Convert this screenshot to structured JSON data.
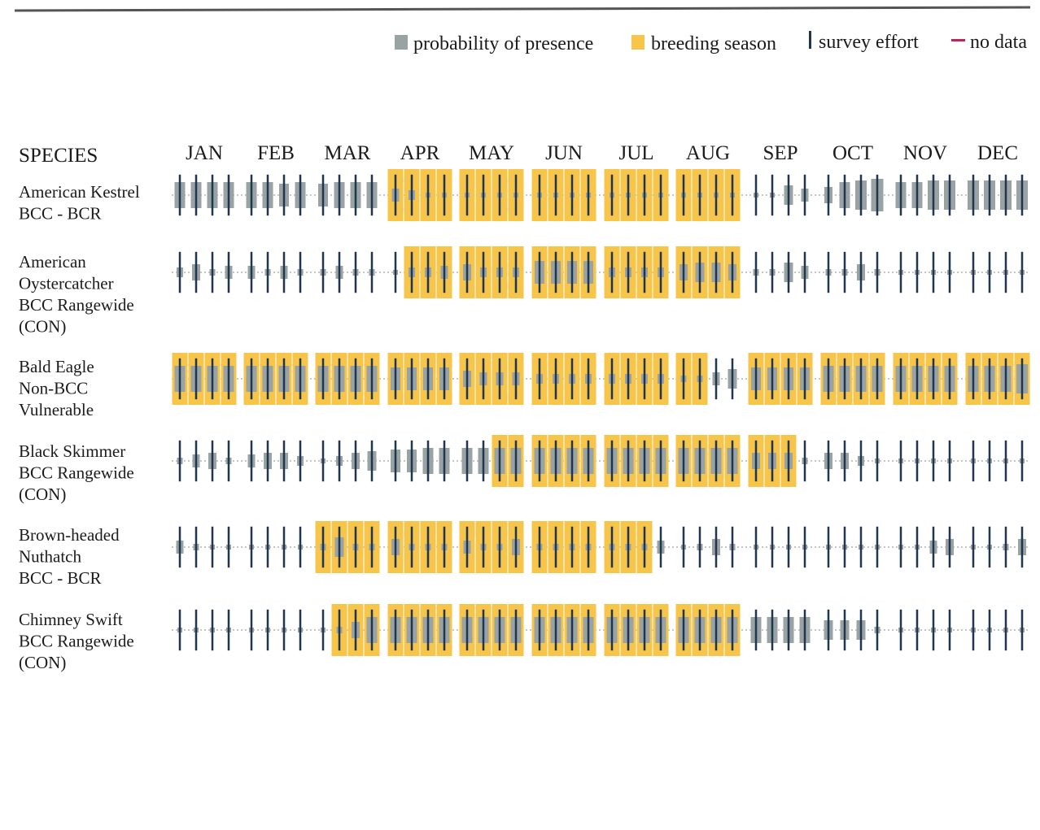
{
  "legend": {
    "presence_label": "probability of presence",
    "breeding_label": "breeding season",
    "effort_label": "survey effort",
    "nodata_label": "no data"
  },
  "colors": {
    "presence": "#9aa3a3",
    "breeding": "#f6c54a",
    "effort": "#1f3550",
    "nodata": "#c0245c",
    "dotted": "#a5a5a5",
    "rule": "#555555"
  },
  "chart_data": {
    "type": "heatmap",
    "header": "SPECIES",
    "months": [
      "JAN",
      "FEB",
      "MAR",
      "APR",
      "MAY",
      "JUN",
      "JUL",
      "AUG",
      "SEP",
      "OCT",
      "NOV",
      "DEC"
    ],
    "weeks_per_month": 4,
    "species": [
      {
        "lines": [
          "American Kestrel",
          "BCC - BCR"
        ],
        "breeding_weeks": [
          12,
          13,
          14,
          15,
          16,
          17,
          18,
          19,
          20,
          21,
          22,
          23,
          24,
          25,
          26,
          27,
          28,
          29,
          30,
          31
        ],
        "presence": [
          0.8,
          0.8,
          0.8,
          0.8,
          0.8,
          0.8,
          0.7,
          0.8,
          0.7,
          0.8,
          0.8,
          0.8,
          0.4,
          0.3,
          0.1,
          0.1,
          0.1,
          0.1,
          0.1,
          0.1,
          0.1,
          0.1,
          0.1,
          0.1,
          0.1,
          0.1,
          0.1,
          0.1,
          0.1,
          0.1,
          0.1,
          0.1,
          0.1,
          0.1,
          0.6,
          0.4,
          0.5,
          0.8,
          0.9,
          1.0,
          0.8,
          0.8,
          0.9,
          0.9,
          0.9,
          0.9,
          0.9,
          0.9
        ],
        "effort": [
          0.9,
          0.9,
          0.9,
          0.9,
          0.9,
          0.9,
          0.9,
          0.9,
          0.9,
          0.9,
          0.9,
          0.9,
          0.9,
          0.9,
          0.9,
          0.9,
          0.9,
          0.9,
          0.9,
          0.9,
          0.9,
          0.9,
          0.9,
          0.9,
          0.9,
          0.9,
          0.9,
          0.9,
          0.9,
          0.9,
          0.9,
          0.9,
          0.9,
          0.9,
          0.9,
          0.9,
          0.9,
          0.9,
          0.9,
          0.9,
          0.9,
          0.9,
          0.9,
          0.9,
          0.9,
          0.9,
          0.9,
          0.9
        ]
      },
      {
        "lines": [
          "American",
          "Oystercatcher",
          "BCC Rangewide",
          "(CON)"
        ],
        "breeding_weeks": [
          13,
          14,
          15,
          16,
          17,
          18,
          19,
          20,
          21,
          22,
          23,
          24,
          25,
          26,
          27,
          28,
          29,
          30,
          31
        ],
        "presence": [
          0.3,
          0.5,
          0.2,
          0.4,
          0.4,
          0.2,
          0.4,
          0.2,
          0.2,
          0.4,
          0.2,
          0.2,
          0.1,
          0.3,
          0.3,
          0.4,
          0.5,
          0.3,
          0.3,
          0.3,
          0.7,
          0.7,
          0.7,
          0.7,
          0.3,
          0.3,
          0.3,
          0.3,
          0.5,
          0.6,
          0.6,
          0.5,
          0.2,
          0.2,
          0.6,
          0.4,
          0.2,
          0.2,
          0.5,
          0.2,
          0.1,
          0.1,
          0.1,
          0.1,
          0.1,
          0.1,
          0.1,
          0.1
        ],
        "effort": [
          0.9,
          0.9,
          0.9,
          0.9,
          0.9,
          0.9,
          0.9,
          0.9,
          0.9,
          0.9,
          0.9,
          0.9,
          0.9,
          0.9,
          0.9,
          0.9,
          0.9,
          0.9,
          0.9,
          0.9,
          0.9,
          0.9,
          0.9,
          0.9,
          0.9,
          0.9,
          0.9,
          0.9,
          0.9,
          0.9,
          0.9,
          0.9,
          0.9,
          0.9,
          0.9,
          0.9,
          0.9,
          0.9,
          0.9,
          0.9,
          0.9,
          0.9,
          0.9,
          0.9,
          0.9,
          0.9,
          0.9,
          0.9
        ]
      },
      {
        "lines": [
          "Bald Eagle",
          "Non-BCC",
          "Vulnerable"
        ],
        "breeding_weeks": [
          0,
          1,
          2,
          3,
          4,
          5,
          6,
          7,
          8,
          9,
          10,
          11,
          12,
          13,
          14,
          15,
          16,
          17,
          18,
          19,
          20,
          21,
          22,
          23,
          24,
          25,
          26,
          27,
          28,
          29,
          32,
          33,
          34,
          35,
          36,
          37,
          38,
          39,
          40,
          41,
          42,
          43,
          44,
          45,
          46,
          47
        ],
        "presence": [
          0.8,
          0.8,
          0.8,
          0.8,
          0.8,
          0.8,
          0.8,
          0.8,
          0.8,
          0.8,
          0.8,
          0.8,
          0.7,
          0.7,
          0.7,
          0.7,
          0.5,
          0.4,
          0.4,
          0.4,
          0.3,
          0.3,
          0.3,
          0.3,
          0.3,
          0.3,
          0.3,
          0.3,
          0.2,
          0.2,
          0.4,
          0.6,
          0.7,
          0.7,
          0.7,
          0.7,
          0.8,
          0.8,
          0.8,
          0.8,
          0.8,
          0.8,
          0.8,
          0.8,
          0.8,
          0.8,
          0.8,
          0.9
        ],
        "effort": [
          0.9,
          0.9,
          0.9,
          0.9,
          0.9,
          0.9,
          0.9,
          0.9,
          0.9,
          0.9,
          0.9,
          0.9,
          0.9,
          0.9,
          0.9,
          0.9,
          0.9,
          0.9,
          0.9,
          0.9,
          0.9,
          0.9,
          0.9,
          0.9,
          0.9,
          0.9,
          0.9,
          0.9,
          0.9,
          0.9,
          0.9,
          0.9,
          0.9,
          0.9,
          0.9,
          0.9,
          0.9,
          0.9,
          0.9,
          0.9,
          0.9,
          0.9,
          0.9,
          0.9,
          0.9,
          0.9,
          0.9,
          0.9
        ]
      },
      {
        "lines": [
          "Black Skimmer",
          "BCC Rangewide",
          "(CON)"
        ],
        "breeding_weeks": [
          18,
          19,
          20,
          21,
          22,
          23,
          24,
          25,
          26,
          27,
          28,
          29,
          30,
          31,
          32,
          33,
          34
        ],
        "presence": [
          0.2,
          0.4,
          0.5,
          0.2,
          0.4,
          0.5,
          0.5,
          0.3,
          0.1,
          0.3,
          0.5,
          0.6,
          0.7,
          0.7,
          0.8,
          0.8,
          0.8,
          0.8,
          0.8,
          0.8,
          0.8,
          0.8,
          0.8,
          0.8,
          0.8,
          0.8,
          0.8,
          0.8,
          0.8,
          0.8,
          0.8,
          0.8,
          0.5,
          0.5,
          0.5,
          0.2,
          0.5,
          0.5,
          0.3,
          0.1,
          0.1,
          0.1,
          0.1,
          0.1,
          0.1,
          0.1,
          0.1,
          0.1
        ],
        "effort": [
          0.9,
          0.9,
          0.9,
          0.9,
          0.9,
          0.9,
          0.9,
          0.9,
          0.9,
          0.9,
          0.9,
          0.9,
          0.9,
          0.9,
          0.9,
          0.9,
          0.9,
          0.9,
          0.9,
          0.9,
          0.9,
          0.9,
          0.9,
          0.9,
          0.9,
          0.9,
          0.9,
          0.9,
          0.9,
          0.9,
          0.9,
          0.9,
          0.9,
          0.9,
          0.9,
          0.9,
          0.9,
          0.9,
          0.9,
          0.9,
          0.9,
          0.9,
          0.9,
          0.9,
          0.9,
          0.9,
          0.9,
          0.9
        ]
      },
      {
        "lines": [
          "Brown-headed",
          "Nuthatch",
          "BCC - BCR"
        ],
        "breeding_weeks": [
          8,
          9,
          10,
          11,
          12,
          13,
          14,
          15,
          16,
          17,
          18,
          19,
          20,
          21,
          22,
          23,
          24,
          25,
          26
        ],
        "presence": [
          0.4,
          0.2,
          0.1,
          0.1,
          0.1,
          0.1,
          0.1,
          0.1,
          0.2,
          0.6,
          0.2,
          0.2,
          0.5,
          0.2,
          0.2,
          0.2,
          0.4,
          0.2,
          0.2,
          0.5,
          0.2,
          0.2,
          0.2,
          0.2,
          0.2,
          0.2,
          0.2,
          0.4,
          0.1,
          0.2,
          0.5,
          0.2,
          0.1,
          0.1,
          0.1,
          0.1,
          0.1,
          0.1,
          0.1,
          0.1,
          0.1,
          0.1,
          0.4,
          0.5,
          0.1,
          0.1,
          0.2,
          0.5
        ],
        "effort": [
          0.9,
          0.9,
          0.9,
          0.9,
          0.9,
          0.9,
          0.9,
          0.9,
          0.9,
          0.9,
          0.9,
          0.9,
          0.9,
          0.9,
          0.9,
          0.9,
          0.9,
          0.9,
          0.9,
          0.9,
          0.9,
          0.9,
          0.9,
          0.9,
          0.9,
          0.9,
          0.9,
          0.9,
          0.9,
          0.9,
          0.9,
          0.9,
          0.9,
          0.9,
          0.9,
          0.9,
          0.9,
          0.9,
          0.9,
          0.9,
          0.9,
          0.9,
          0.9,
          0.9,
          0.9,
          0.9,
          0.9,
          0.9
        ]
      },
      {
        "lines": [
          "Chimney Swift",
          "BCC Rangewide",
          "(CON)"
        ],
        "breeding_weeks": [
          9,
          10,
          11,
          12,
          13,
          14,
          15,
          16,
          17,
          18,
          19,
          20,
          21,
          22,
          23,
          24,
          25,
          26,
          27,
          28,
          29,
          30,
          31
        ],
        "presence": [
          0.1,
          0.1,
          0.1,
          0.1,
          0.1,
          0.1,
          0.1,
          0.1,
          0.1,
          0.2,
          0.5,
          0.8,
          0.8,
          0.8,
          0.8,
          0.8,
          0.8,
          0.8,
          0.8,
          0.8,
          0.8,
          0.8,
          0.8,
          0.8,
          0.8,
          0.8,
          0.8,
          0.8,
          0.8,
          0.8,
          0.8,
          0.8,
          0.8,
          0.8,
          0.8,
          0.8,
          0.6,
          0.6,
          0.6,
          0.2,
          0.1,
          0.1,
          0.1,
          0.1,
          0.1,
          0.1,
          0.1,
          0.1
        ],
        "effort": [
          0.9,
          0.9,
          0.9,
          0.9,
          0.9,
          0.9,
          0.9,
          0.9,
          0.9,
          0.9,
          0.9,
          0.9,
          0.9,
          0.9,
          0.9,
          0.9,
          0.9,
          0.9,
          0.9,
          0.9,
          0.9,
          0.9,
          0.9,
          0.9,
          0.9,
          0.9,
          0.9,
          0.9,
          0.9,
          0.9,
          0.9,
          0.9,
          0.9,
          0.9,
          0.9,
          0.9,
          0.9,
          0.9,
          0.9,
          0.9,
          0.9,
          0.9,
          0.9,
          0.9,
          0.9,
          0.9,
          0.9,
          0.9
        ]
      }
    ]
  }
}
